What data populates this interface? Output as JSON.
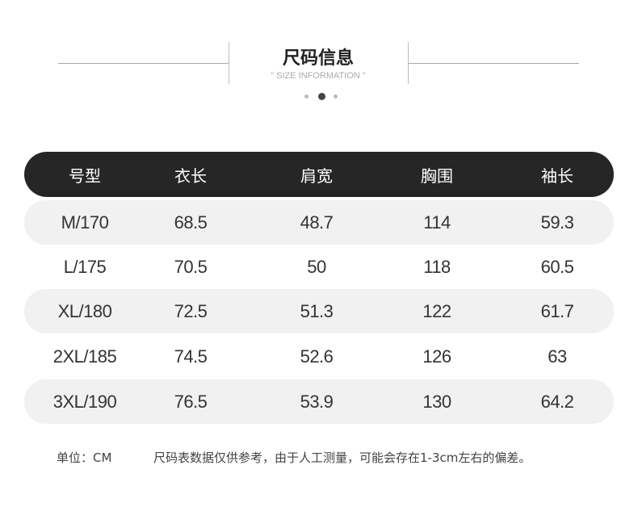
{
  "header": {
    "title": "尺码信息",
    "subtitle": "\" SIZE INFORMATION \""
  },
  "pagination": {
    "count": 3,
    "active": 2
  },
  "colors": {
    "header_bg": "#262626",
    "row_shade": "#f1f1f1"
  },
  "table": {
    "columns": [
      "号型",
      "衣长",
      "肩宽",
      "胸围",
      "袖长"
    ],
    "rows": [
      [
        "M/170",
        "68.5",
        "48.7",
        "114",
        "59.3"
      ],
      [
        "L/175",
        "70.5",
        "50",
        "118",
        "60.5"
      ],
      [
        "XL/180",
        "72.5",
        "51.3",
        "122",
        "61.7"
      ],
      [
        "2XL/185",
        "74.5",
        "52.6",
        "126",
        "63"
      ],
      [
        "3XL/190",
        "76.5",
        "53.9",
        "130",
        "64.2"
      ]
    ]
  },
  "footer": {
    "unit": "单位：CM",
    "note": "尺码表数据仅供参考，由于人工测量，可能会存在1-3cm左右的偏差。"
  }
}
